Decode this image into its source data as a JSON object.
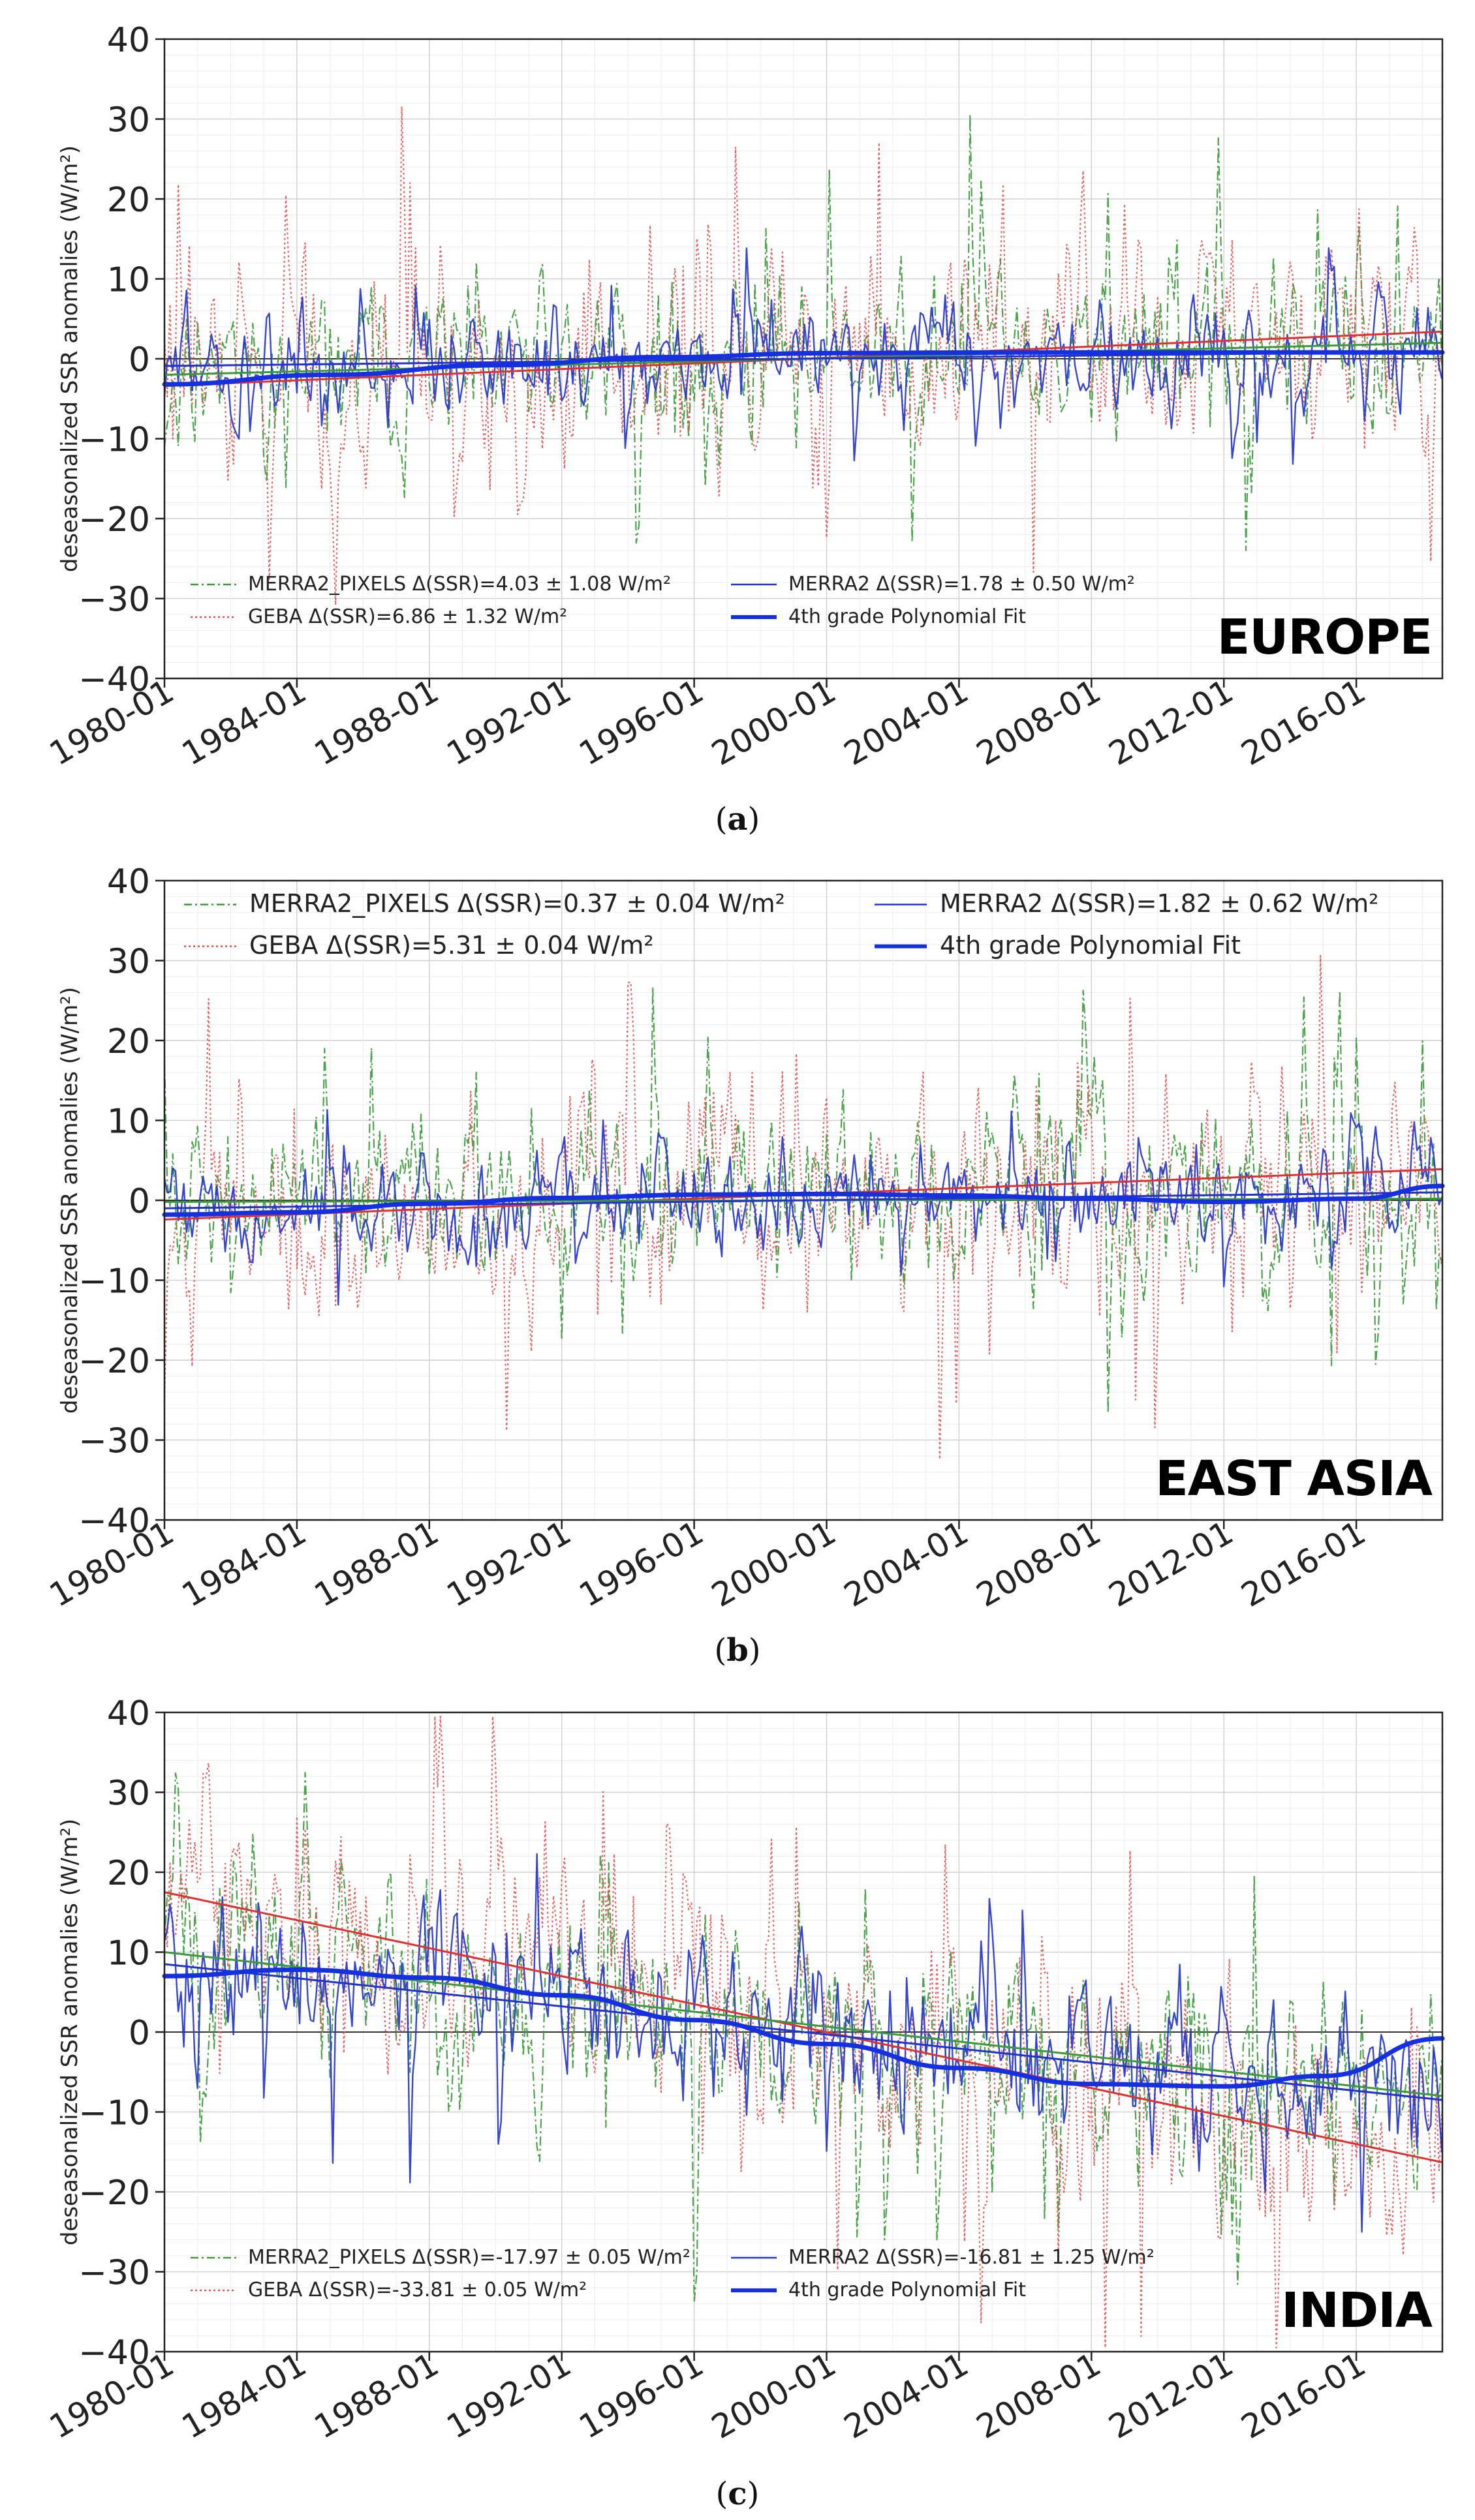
{
  "chart_data": [
    {
      "type": "line",
      "panel_caption": "a",
      "region_label": "EUROPE",
      "ylabel": "deseasonalized SSR anomalies (W/m²)",
      "ylim": [
        -40,
        40
      ],
      "yticks": [
        "40",
        "30",
        "20",
        "10",
        "0",
        "−10",
        "−20",
        "−30",
        "−40"
      ],
      "xlim": [
        1980.0,
        2018.6
      ],
      "xticks": [
        "1980-01",
        "1984-01",
        "1988-01",
        "1992-01",
        "1996-01",
        "2000-01",
        "2004-01",
        "2008-01",
        "2012-01",
        "2016-01"
      ],
      "grid": true,
      "legend_position": "bottom",
      "legend": [
        {
          "label": "MERRA2_PIXELS Δ(SSR)=4.03 ± 1.08 W/m²",
          "color": "#3a9a3a",
          "style": "dashdot"
        },
        {
          "label": "GEBA Δ(SSR)=6.86 ± 1.32 W/m²",
          "color": "#e05555",
          "style": "dotted"
        },
        {
          "label": "MERRA2 Δ(SSR)=1.78 ± 0.50 W/m²",
          "color": "#2233cc",
          "style": "solid"
        },
        {
          "label": "4th grade Polynomial Fit",
          "color": "#1530e0",
          "style": "thick"
        }
      ],
      "series": [
        {
          "style": "green",
          "anomaly_range": 7,
          "trend": [
            -2.0,
            2.0
          ]
        },
        {
          "style": "red",
          "anomaly_range": 9,
          "trend": [
            -3.4,
            3.4
          ]
        },
        {
          "style": "blue",
          "anomaly_range": 4,
          "trend": [
            -0.9,
            0.9
          ]
        }
      ],
      "trend_lines": [
        {
          "color": "#e03030",
          "x": [
            1980.0,
            2018.6
          ],
          "y": [
            -3.4,
            3.4
          ]
        },
        {
          "color": "#3a9a3a",
          "x": [
            1980.0,
            2018.6
          ],
          "y": [
            -2.0,
            2.0
          ]
        },
        {
          "color": "#2233cc",
          "x": [
            1980.0,
            2018.6
          ],
          "y": [
            -0.9,
            0.9
          ]
        }
      ],
      "poly_fit": {
        "x": [
          1980,
          1985,
          1990,
          1995,
          2000,
          2005,
          2010,
          2015,
          2018.6
        ],
        "y": [
          -3.2,
          -2.0,
          -0.8,
          0.2,
          0.7,
          0.8,
          0.8,
          0.8,
          0.8
        ]
      }
    },
    {
      "type": "line",
      "panel_caption": "b",
      "region_label": "EAST ASIA",
      "ylabel": "deseasonalized SSR anomalies (W/m²)",
      "ylim": [
        -40,
        40
      ],
      "yticks": [
        "40",
        "30",
        "20",
        "10",
        "0",
        "−10",
        "−20",
        "−30",
        "−40"
      ],
      "xlim": [
        1980.0,
        2018.6
      ],
      "xticks": [
        "1980-01",
        "1984-01",
        "1988-01",
        "1992-01",
        "1996-01",
        "2000-01",
        "2004-01",
        "2008-01",
        "2012-01",
        "2016-01"
      ],
      "grid": true,
      "legend_position": "top",
      "legend": [
        {
          "label": "MERRA2_PIXELS Δ(SSR)=0.37 ± 0.04 W/m²",
          "color": "#3a9a3a",
          "style": "dashdot"
        },
        {
          "label": "GEBA Δ(SSR)=5.31 ± 0.04 W/m²",
          "color": "#e05555",
          "style": "dotted"
        },
        {
          "label": "MERRA2 Δ(SSR)=1.82 ± 0.62 W/m²",
          "color": "#2233cc",
          "style": "solid"
        },
        {
          "label": "4th grade Polynomial Fit",
          "color": "#1530e0",
          "style": "thick"
        }
      ],
      "series": [
        {
          "style": "green",
          "anomaly_range": 7,
          "trend": [
            -0.2,
            0.2
          ]
        },
        {
          "style": "red",
          "anomaly_range": 9,
          "trend": [
            -2.4,
            3.9
          ]
        },
        {
          "style": "blue",
          "anomaly_range": 4,
          "trend": [
            -1.0,
            1.0
          ]
        }
      ],
      "trend_lines": [
        {
          "color": "#e03030",
          "x": [
            1980.0,
            2018.6
          ],
          "y": [
            -2.4,
            3.9
          ]
        },
        {
          "color": "#3a9a3a",
          "x": [
            1980.0,
            2018.6
          ],
          "y": [
            -0.2,
            0.2
          ]
        },
        {
          "color": "#2233cc",
          "x": [
            1980.0,
            2018.6
          ],
          "y": [
            -1.0,
            1.0
          ]
        }
      ],
      "poly_fit": {
        "x": [
          1980,
          1984,
          1988,
          1992,
          1996,
          2000,
          2004,
          2008,
          2012,
          2016,
          2018.6
        ],
        "y": [
          -1.8,
          -1.5,
          -0.4,
          0.3,
          0.7,
          0.8,
          0.6,
          0.2,
          -0.2,
          0.2,
          1.8
        ]
      }
    },
    {
      "type": "line",
      "panel_caption": "c",
      "region_label": "INDIA",
      "ylabel": "deseasonalized SSR anomalies (W/m²)",
      "ylim": [
        -40,
        40
      ],
      "yticks": [
        "40",
        "30",
        "20",
        "10",
        "0",
        "−10",
        "−20",
        "−30",
        "−40"
      ],
      "xlim": [
        1980.0,
        2018.6
      ],
      "xticks": [
        "1980-01",
        "1984-01",
        "1988-01",
        "1992-01",
        "1996-01",
        "2000-01",
        "2004-01",
        "2008-01",
        "2012-01",
        "2016-01"
      ],
      "grid": true,
      "legend_position": "bottom",
      "legend": [
        {
          "label": "MERRA2_PIXELS Δ(SSR)=-17.97 ± 0.05 W/m²",
          "color": "#3a9a3a",
          "style": "dashdot"
        },
        {
          "label": "GEBA Δ(SSR)=-33.81 ± 0.05 W/m²",
          "color": "#e05555",
          "style": "dotted"
        },
        {
          "label": "MERRA2 Δ(SSR)=-16.81 ± 1.25 W/m²",
          "color": "#2233cc",
          "style": "solid"
        },
        {
          "label": "4th grade Polynomial Fit",
          "color": "#1530e0",
          "style": "thick"
        }
      ],
      "series": [
        {
          "style": "green",
          "anomaly_range": 8,
          "trend": [
            10.0,
            -8.0
          ]
        },
        {
          "style": "red",
          "anomaly_range": 10,
          "trend": [
            17.5,
            -16.3
          ]
        },
        {
          "style": "blue",
          "anomaly_range": 6,
          "trend": [
            8.5,
            -8.5
          ]
        }
      ],
      "trend_lines": [
        {
          "color": "#e03030",
          "x": [
            1980.0,
            2018.6
          ],
          "y": [
            17.5,
            -16.3
          ]
        },
        {
          "color": "#3a9a3a",
          "x": [
            1980.0,
            2018.6
          ],
          "y": [
            10.0,
            -8.0
          ]
        },
        {
          "color": "#2233cc",
          "x": [
            1980.0,
            2018.6
          ],
          "y": [
            8.5,
            -8.5
          ]
        }
      ],
      "poly_fit": {
        "x": [
          1980,
          1984,
          1988,
          1992,
          1996,
          2000,
          2004,
          2008,
          2012,
          2015,
          2018.6
        ],
        "y": [
          7.0,
          7.8,
          6.8,
          4.6,
          1.5,
          -1.5,
          -4.5,
          -6.5,
          -6.8,
          -5.5,
          -0.8
        ]
      }
    }
  ]
}
